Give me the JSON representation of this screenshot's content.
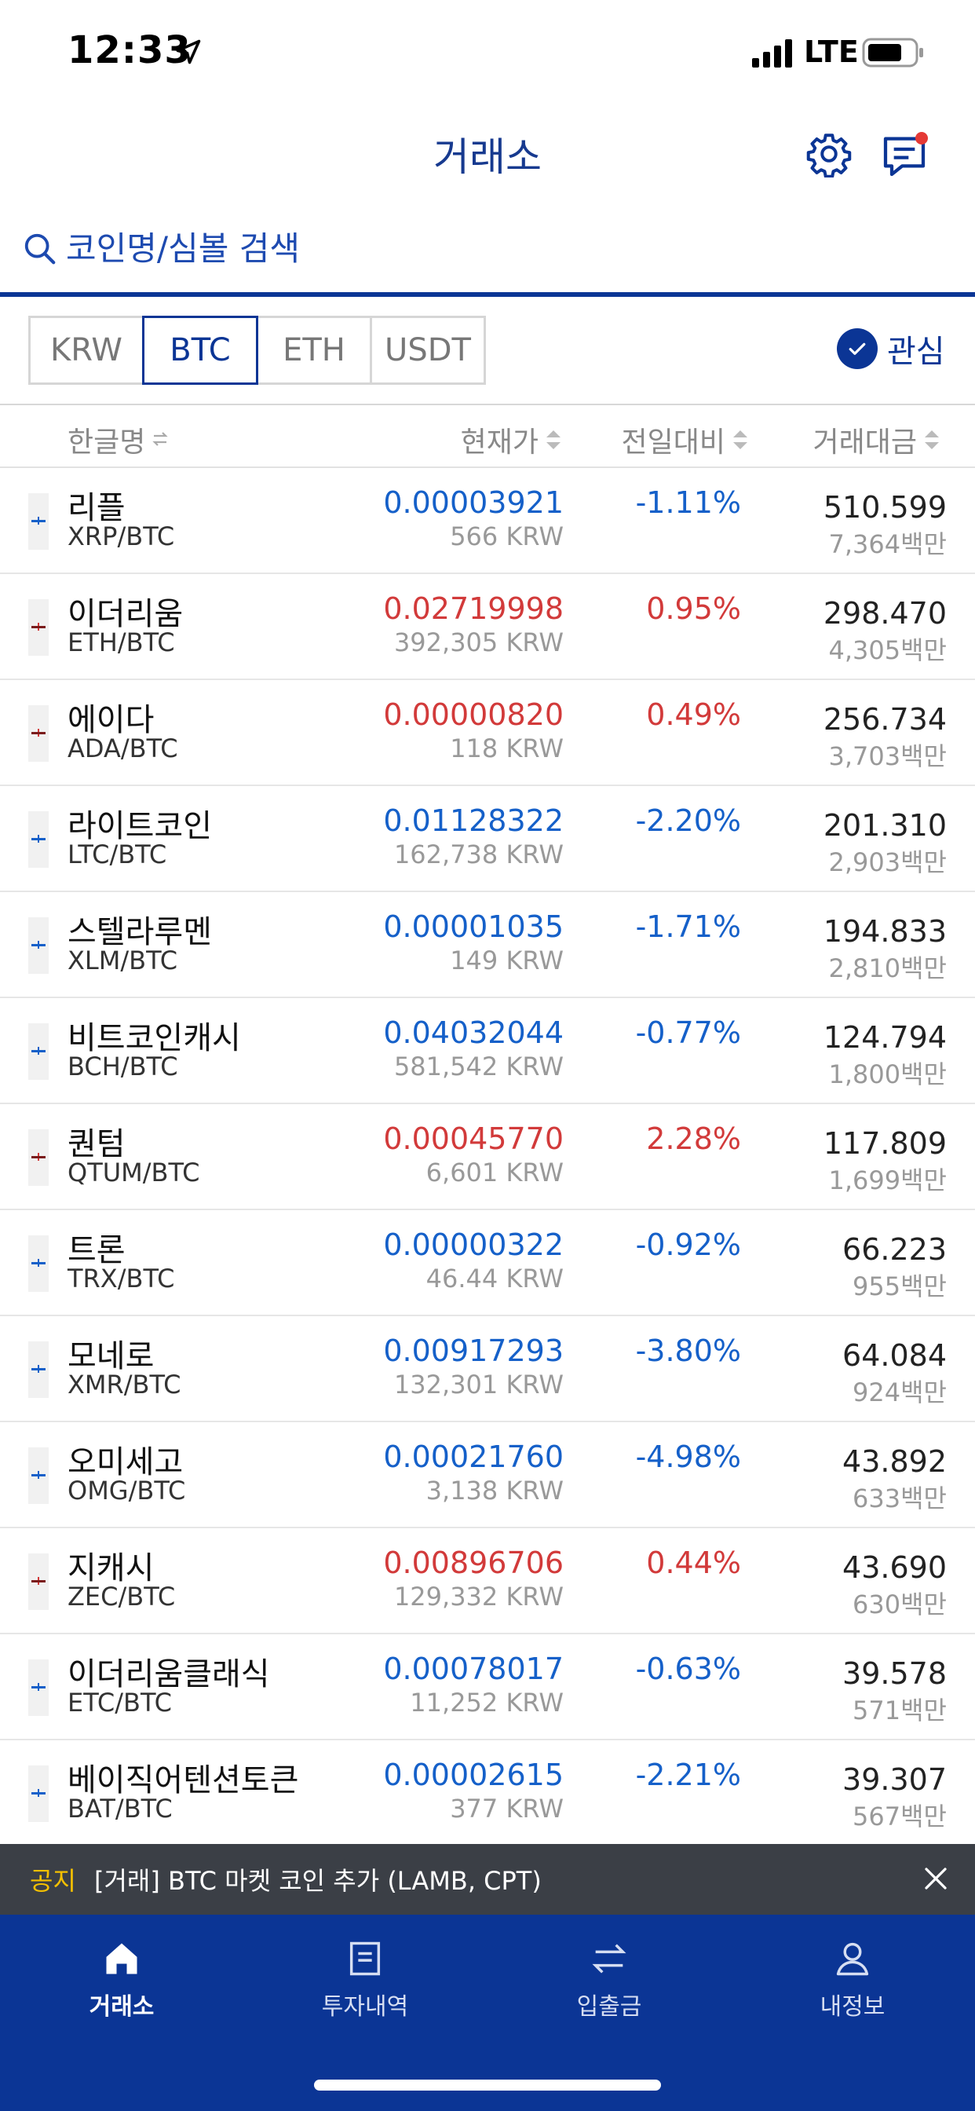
{
  "status_bar": {
    "time": "12:33",
    "network": "LTE"
  },
  "header": {
    "title": "거래소"
  },
  "search": {
    "placeholder": "코인명/심볼 검색"
  },
  "market_tabs": [
    {
      "label": "KRW",
      "active": false
    },
    {
      "label": "BTC",
      "active": true
    },
    {
      "label": "ETH",
      "active": false
    },
    {
      "label": "USDT",
      "active": false
    }
  ],
  "favorites": {
    "label": "관심",
    "checked": true
  },
  "table_header": {
    "name": "한글명",
    "price": "현재가",
    "change": "전일대비",
    "volume": "거래대금"
  },
  "rows": [
    {
      "name": "리플",
      "pair": "XRP/BTC",
      "price": "0.00003921",
      "krw": "566 KRW",
      "change": "-1.11%",
      "volume": "510.599",
      "volume_sub": "7,364백만",
      "direction": "down"
    },
    {
      "name": "이더리움",
      "pair": "ETH/BTC",
      "price": "0.02719998",
      "krw": "392,305 KRW",
      "change": "0.95%",
      "volume": "298.470",
      "volume_sub": "4,305백만",
      "direction": "up"
    },
    {
      "name": "에이다",
      "pair": "ADA/BTC",
      "price": "0.00000820",
      "krw": "118 KRW",
      "change": "0.49%",
      "volume": "256.734",
      "volume_sub": "3,703백만",
      "direction": "up"
    },
    {
      "name": "라이트코인",
      "pair": "LTC/BTC",
      "price": "0.01128322",
      "krw": "162,738 KRW",
      "change": "-2.20%",
      "volume": "201.310",
      "volume_sub": "2,903백만",
      "direction": "down"
    },
    {
      "name": "스텔라루멘",
      "pair": "XLM/BTC",
      "price": "0.00001035",
      "krw": "149 KRW",
      "change": "-1.71%",
      "volume": "194.833",
      "volume_sub": "2,810백만",
      "direction": "down"
    },
    {
      "name": "비트코인캐시",
      "pair": "BCH/BTC",
      "price": "0.04032044",
      "krw": "581,542 KRW",
      "change": "-0.77%",
      "volume": "124.794",
      "volume_sub": "1,800백만",
      "direction": "down"
    },
    {
      "name": "퀀텀",
      "pair": "QTUM/BTC",
      "price": "0.00045770",
      "krw": "6,601 KRW",
      "change": "2.28%",
      "volume": "117.809",
      "volume_sub": "1,699백만",
      "direction": "up"
    },
    {
      "name": "트론",
      "pair": "TRX/BTC",
      "price": "0.00000322",
      "krw": "46.44 KRW",
      "change": "-0.92%",
      "volume": "66.223",
      "volume_sub": "955백만",
      "direction": "down"
    },
    {
      "name": "모네로",
      "pair": "XMR/BTC",
      "price": "0.00917293",
      "krw": "132,301 KRW",
      "change": "-3.80%",
      "volume": "64.084",
      "volume_sub": "924백만",
      "direction": "down"
    },
    {
      "name": "오미세고",
      "pair": "OMG/BTC",
      "price": "0.00021760",
      "krw": "3,138 KRW",
      "change": "-4.98%",
      "volume": "43.892",
      "volume_sub": "633백만",
      "direction": "down"
    },
    {
      "name": "지캐시",
      "pair": "ZEC/BTC",
      "price": "0.00896706",
      "krw": "129,332 KRW",
      "change": "0.44%",
      "volume": "43.690",
      "volume_sub": "630백만",
      "direction": "up"
    },
    {
      "name": "이더리움클래식",
      "pair": "ETC/BTC",
      "price": "0.00078017",
      "krw": "11,252 KRW",
      "change": "-0.63%",
      "volume": "39.578",
      "volume_sub": "571백만",
      "direction": "down"
    },
    {
      "name": "베이직어텐션토큰",
      "pair": "BAT/BTC",
      "price": "0.00002615",
      "krw": "377 KRW",
      "change": "-2.21%",
      "volume": "39.307",
      "volume_sub": "567백만",
      "direction": "down"
    }
  ],
  "notice": {
    "tag": "공지",
    "text": "[거래] BTC 마켓 코인 추가 (LAMB, CPT)"
  },
  "bottom_nav": [
    {
      "label": "거래소",
      "icon": "home-icon",
      "active": true
    },
    {
      "label": "투자내역",
      "icon": "document-icon",
      "active": false
    },
    {
      "label": "입출금",
      "icon": "transfer-icon",
      "active": false
    },
    {
      "label": "내정보",
      "icon": "person-icon",
      "active": false
    }
  ],
  "colors": {
    "brand": "#0b3595",
    "up": "#d23a3a",
    "down": "#1560c9",
    "notice_bg": "#3b3f46",
    "notice_tag": "#f5c000"
  }
}
